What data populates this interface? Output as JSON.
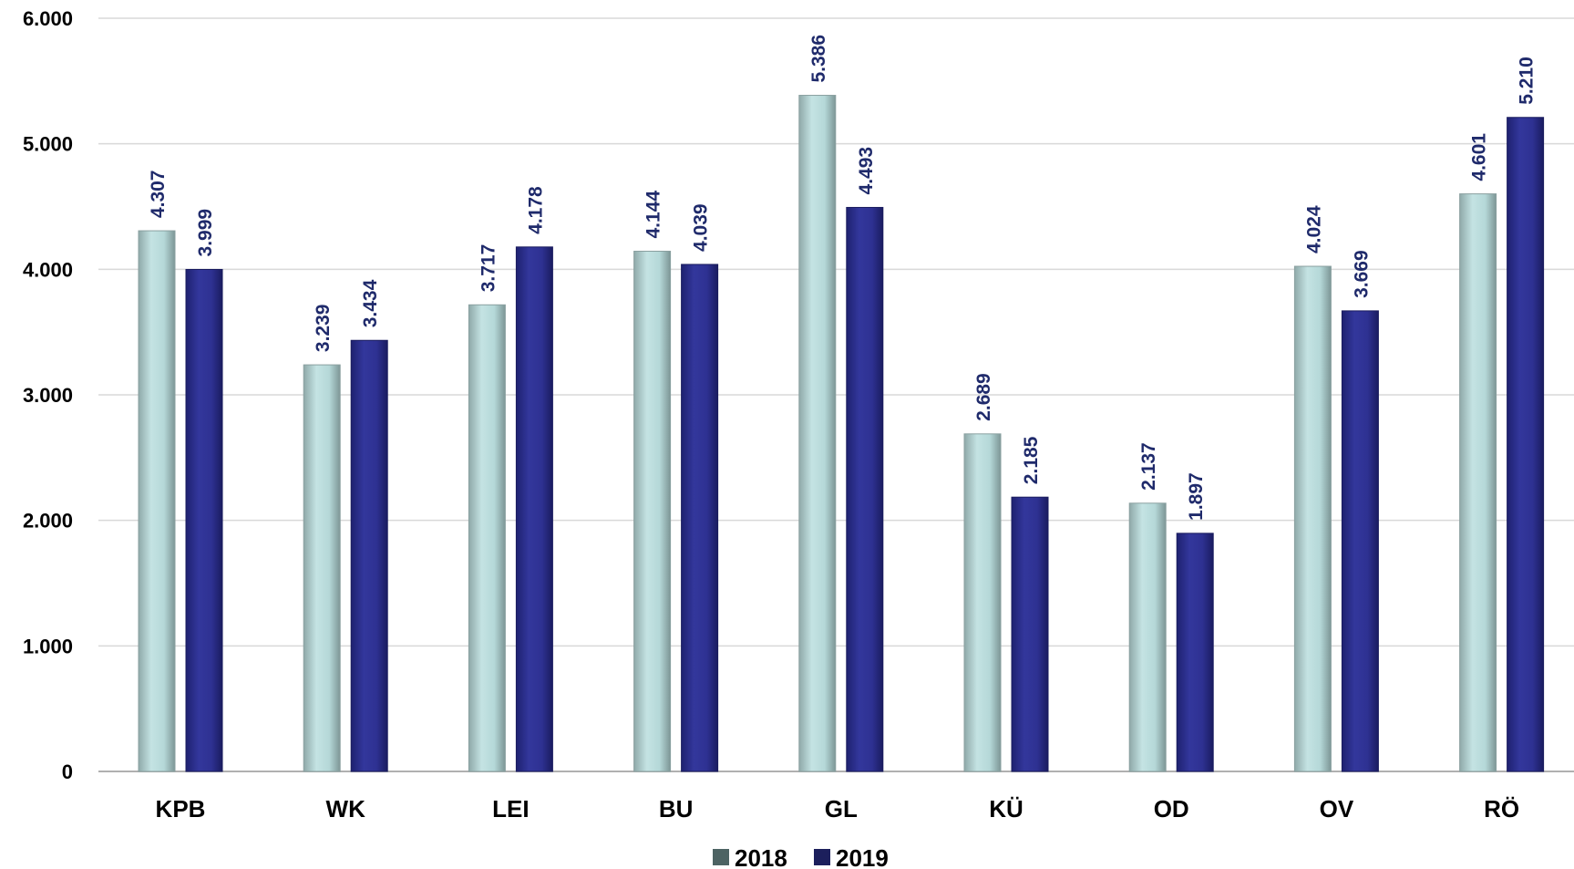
{
  "chart_data": {
    "type": "bar",
    "categories": [
      "KPB",
      "WK",
      "LEI",
      "BU",
      "GL",
      "KÜ",
      "OD",
      "OV",
      "RÖ"
    ],
    "series": [
      {
        "name": "2018",
        "values": [
          4307,
          3239,
          3717,
          4144,
          5386,
          2689,
          2137,
          4024,
          4601
        ],
        "labels": [
          "4.307",
          "3.239",
          "3.717",
          "4.144",
          "5.386",
          "2.689",
          "2.137",
          "4.024",
          "4.601"
        ],
        "color": "#b9dcdc",
        "legend_color": "#4d6363"
      },
      {
        "name": "2019",
        "values": [
          3999,
          3434,
          4178,
          4039,
          4493,
          2185,
          1897,
          3669,
          5210
        ],
        "labels": [
          "3.999",
          "3.434",
          "4.178",
          "4.039",
          "4.493",
          "2.185",
          "1.897",
          "3.669",
          "5.210"
        ],
        "color": "#2e3192",
        "legend_color": "#1c1f5c"
      }
    ],
    "ylim": [
      0,
      6000
    ],
    "yticks": [
      0,
      1000,
      2000,
      3000,
      4000,
      5000,
      6000
    ],
    "ytick_labels": [
      "0",
      "1.000",
      "2.000",
      "3.000",
      "4.000",
      "5.000",
      "6.000"
    ],
    "grid": true,
    "legend_position": "bottom-center",
    "label_color": "#1f2a6b"
  }
}
